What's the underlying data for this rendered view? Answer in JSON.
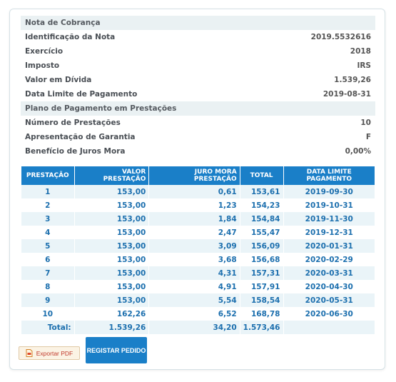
{
  "nota": {
    "title": "Nota de Cobrança",
    "fields": [
      {
        "label": "Identificação da Nota",
        "value": "2019.5532616"
      },
      {
        "label": "Exercício",
        "value": "2018"
      },
      {
        "label": "Imposto",
        "value": "IRS"
      },
      {
        "label": "Valor em Dívida",
        "value": "1.539,26"
      },
      {
        "label": "Data Limite de Pagamento",
        "value": "2019-08-31"
      }
    ]
  },
  "plano": {
    "title": "Plano de Pagamento em Prestações",
    "fields": [
      {
        "label": "Número de Prestações",
        "value": "10"
      },
      {
        "label": "Apresentação de Garantia",
        "value": "F"
      },
      {
        "label": "Benefício de Juros Mora",
        "value": "0,00%"
      }
    ]
  },
  "table": {
    "headers": [
      "PRESTAÇÃO",
      "VALOR PRESTAÇÃO",
      "JURO MORA PRESTAÇÃO",
      "TOTAL",
      "DATA LIMITE PAGAMENTO"
    ],
    "rows": [
      [
        "1",
        "153,00",
        "0,61",
        "153,61",
        "2019-09-30"
      ],
      [
        "2",
        "153,00",
        "1,23",
        "154,23",
        "2019-10-31"
      ],
      [
        "3",
        "153,00",
        "1,84",
        "154,84",
        "2019-11-30"
      ],
      [
        "4",
        "153,00",
        "2,47",
        "155,47",
        "2019-12-31"
      ],
      [
        "5",
        "153,00",
        "3,09",
        "156,09",
        "2020-01-31"
      ],
      [
        "6",
        "153,00",
        "3,68",
        "156,68",
        "2020-02-29"
      ],
      [
        "7",
        "153,00",
        "4,31",
        "157,31",
        "2020-03-31"
      ],
      [
        "8",
        "153,00",
        "4,91",
        "157,91",
        "2020-04-30"
      ],
      [
        "9",
        "153,00",
        "5,54",
        "158,54",
        "2020-05-31"
      ],
      [
        "10",
        "162,26",
        "6,52",
        "168,78",
        "2020-06-30"
      ]
    ],
    "total": {
      "label": "Total:",
      "valor": "1.539,26",
      "juro": "34,20",
      "total": "1.573,46",
      "data": ""
    }
  },
  "actions": {
    "export_pdf_label": "Exportar PDF",
    "export_pdf_icon": "pdf-file-icon",
    "register_label": "REGISTAR PEDIDO"
  },
  "colors": {
    "header_blue": "#1a7fc8",
    "cell_text": "#1c6fae",
    "section_bg": "#eaf1f3"
  }
}
